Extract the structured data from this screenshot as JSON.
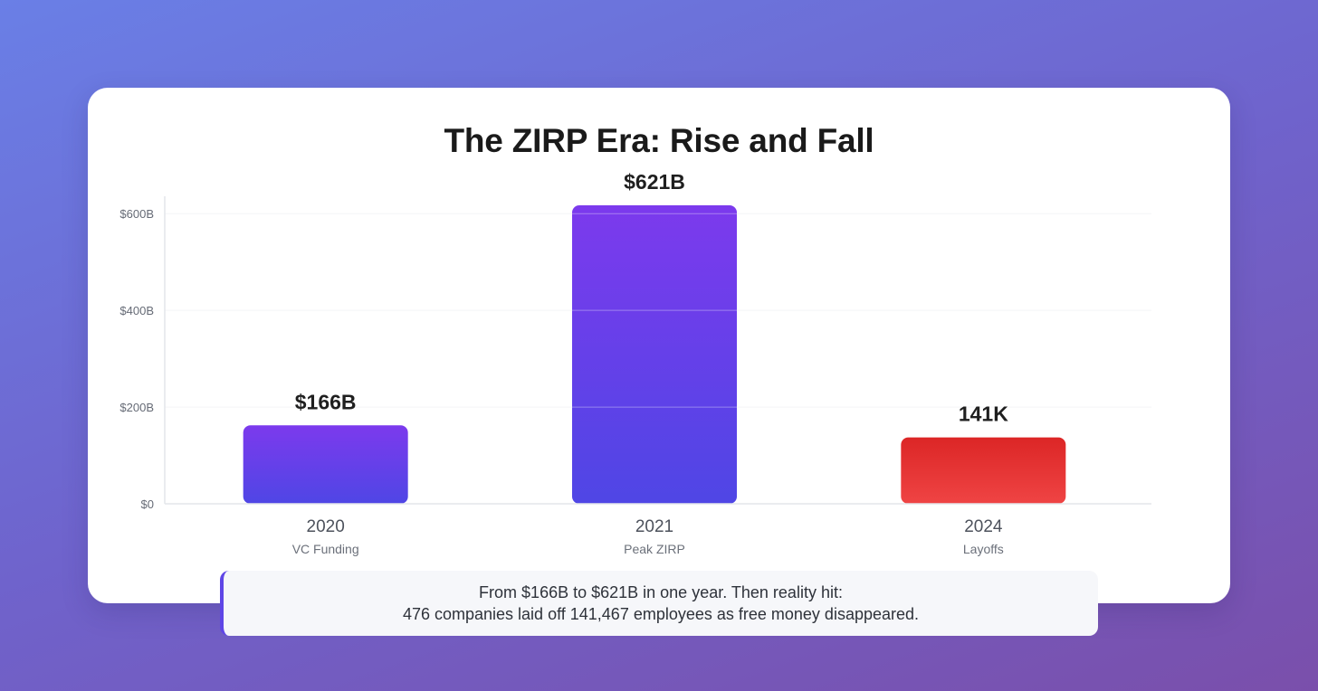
{
  "colors": {
    "bar_purple_top": "#7c3aed",
    "bar_purple_bottom": "#4f46e5",
    "bar_red_top": "#dc2626",
    "bar_red_bottom": "#ef4444",
    "callout_accent": "#5f46e6"
  },
  "chart_data": {
    "type": "bar",
    "title": "The ZIRP Era: Rise and Fall",
    "categories": [
      "2020",
      "2021",
      "2024"
    ],
    "subcategories": [
      "VC Funding",
      "Peak ZIRP",
      "Layoffs"
    ],
    "values": [
      166,
      621,
      141
    ],
    "value_labels": [
      "$166B",
      "$621B",
      "141K"
    ],
    "bar_colors": [
      "purple",
      "purple",
      "red"
    ],
    "ylim": [
      0,
      621
    ],
    "yticks": [
      0,
      200,
      400,
      600
    ],
    "ytick_labels": [
      "$0",
      "$200B",
      "$400B",
      "$600B"
    ],
    "xlabel": "",
    "ylabel": "",
    "grid": true,
    "legend": "none"
  },
  "callout": {
    "line1": "From $166B to $621B in one year. Then reality hit:",
    "line2": "476 companies laid off 141,467 employees as free money disappeared."
  }
}
